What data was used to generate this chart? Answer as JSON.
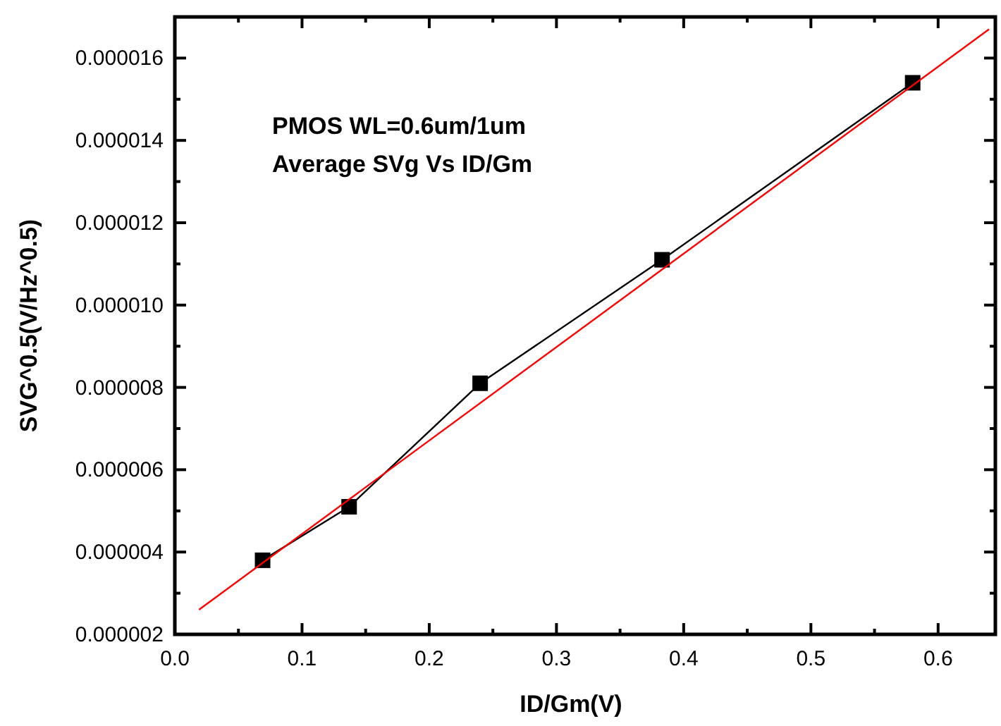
{
  "chart_data": {
    "type": "line",
    "xlabel": "ID/Gm(V)",
    "ylabel": "SVG^0.5(V/Hz^0.5)",
    "annotations": [
      "PMOS WL=0.6um/1um",
      "Average SVg Vs ID/Gm"
    ],
    "xlim": [
      0,
      0.645
    ],
    "ylim": [
      2e-06,
      1.7e-05
    ],
    "xticks": [
      {
        "value": 0,
        "label": "0.0"
      },
      {
        "value": 0.05,
        "label": null
      },
      {
        "value": 0.1,
        "label": "0.1"
      },
      {
        "value": 0.15,
        "label": null
      },
      {
        "value": 0.2,
        "label": "0.2"
      },
      {
        "value": 0.25,
        "label": null
      },
      {
        "value": 0.3,
        "label": "0.3"
      },
      {
        "value": 0.35,
        "label": null
      },
      {
        "value": 0.4,
        "label": "0.4"
      },
      {
        "value": 0.45,
        "label": null
      },
      {
        "value": 0.5,
        "label": "0.5"
      },
      {
        "value": 0.55,
        "label": null
      },
      {
        "value": 0.6,
        "label": "0.6"
      }
    ],
    "yticks": [
      {
        "value": 2e-06,
        "label": "0.000002"
      },
      {
        "value": 3e-06,
        "label": null
      },
      {
        "value": 4e-06,
        "label": "0.000004"
      },
      {
        "value": 5e-06,
        "label": null
      },
      {
        "value": 6e-06,
        "label": "0.000006"
      },
      {
        "value": 7e-06,
        "label": null
      },
      {
        "value": 8e-06,
        "label": "0.000008"
      },
      {
        "value": 9e-06,
        "label": null
      },
      {
        "value": 1e-05,
        "label": "0.000010"
      },
      {
        "value": 1.1e-05,
        "label": null
      },
      {
        "value": 1.2e-05,
        "label": "0.000012"
      },
      {
        "value": 1.3e-05,
        "label": null
      },
      {
        "value": 1.4e-05,
        "label": "0.000014"
      },
      {
        "value": 1.5e-05,
        "label": null
      },
      {
        "value": 1.6e-05,
        "label": "0.000016"
      }
    ],
    "grid": false,
    "series": [
      {
        "color": "#000000",
        "marker": "square",
        "x": [
          0.069,
          0.137,
          0.24,
          0.383,
          0.58
        ],
        "values": [
          3.8e-06,
          5.1e-06,
          8.1e-06,
          1.11e-05,
          1.54e-05
        ]
      },
      {
        "color": "#ff0000",
        "marker": "none",
        "x": [
          0.019,
          0.64
        ],
        "values": [
          2.6e-06,
          1.67e-05
        ]
      }
    ]
  }
}
